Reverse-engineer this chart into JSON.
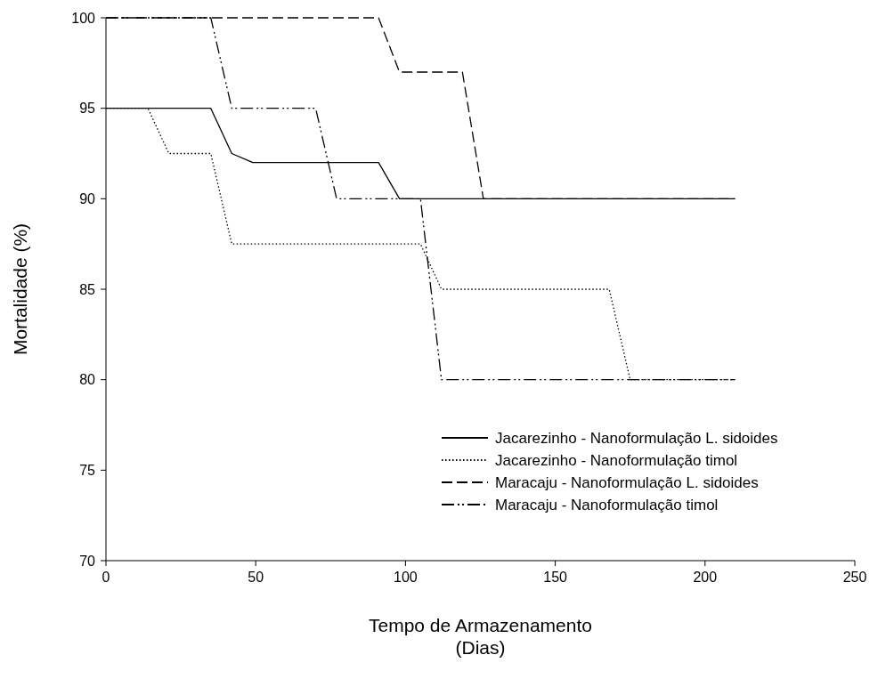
{
  "chart_data": {
    "type": "line",
    "xlabel": "Tempo de Armazenamento\n(Dias)",
    "ylabel": "Mortalidade (%)",
    "xlim": [
      0,
      250
    ],
    "xticks": [
      0,
      50,
      100,
      150,
      200,
      250
    ],
    "ylim": [
      70,
      100
    ],
    "yticks": [
      70,
      75,
      80,
      85,
      90,
      95,
      100
    ],
    "grid": false,
    "legend": "bottom right",
    "marker": "none",
    "series": [
      {
        "name": "Jacarezinho - Nanoformulação L. sidoides",
        "color": "#000000",
        "line_style": "solid",
        "x": [
          0,
          35,
          42,
          49,
          91,
          98,
          210
        ],
        "values": [
          95,
          95,
          92.5,
          92,
          92,
          90,
          90
        ]
      },
      {
        "name": "Jacarezinho - Nanoformulação timol",
        "color": "#000000",
        "line_style": "dotted",
        "x": [
          0,
          14,
          21,
          35,
          42,
          105,
          112,
          168,
          175,
          210
        ],
        "values": [
          95,
          95,
          92.5,
          92.5,
          87.5,
          87.5,
          85,
          85,
          80,
          80
        ]
      },
      {
        "name": "Maracaju - Nanoformulação L. sidoides",
        "color": "#000000",
        "line_style": "dashed",
        "x": [
          0,
          91,
          98,
          119,
          126,
          210
        ],
        "values": [
          100,
          100,
          97,
          97,
          90,
          90
        ]
      },
      {
        "name": "Maracaju - Nanoformulação timol",
        "color": "#000000",
        "line_style": "dashdotdot",
        "x": [
          0,
          35,
          42,
          70,
          77,
          105,
          112,
          210
        ],
        "values": [
          100,
          100,
          95,
          95,
          90,
          90,
          80,
          80
        ]
      }
    ]
  }
}
